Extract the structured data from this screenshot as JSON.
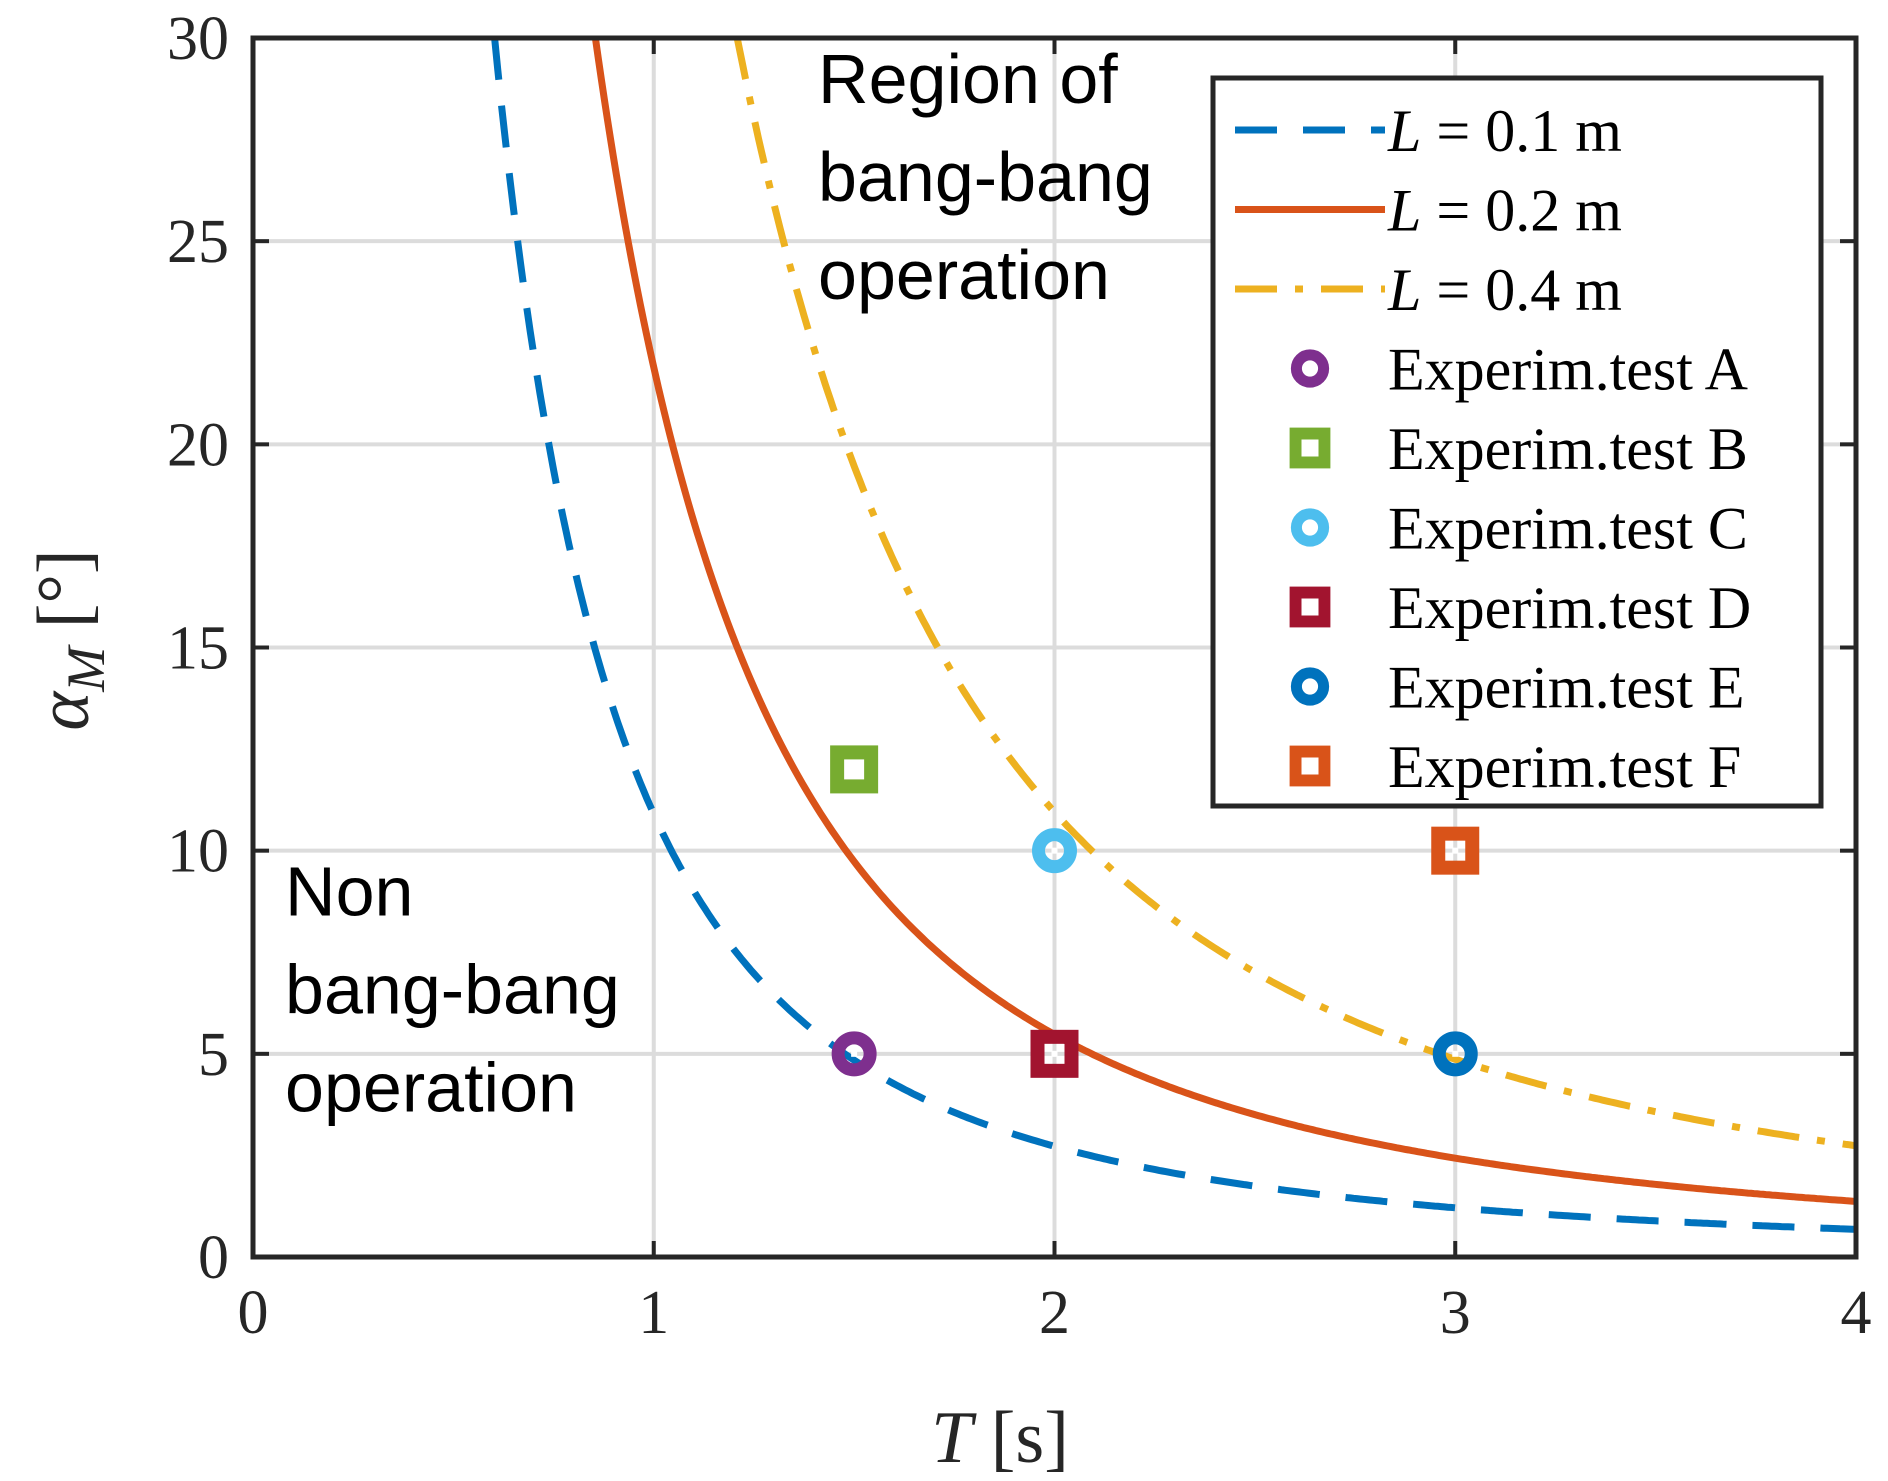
{
  "chart_data": {
    "type": "line",
    "title": "",
    "xlabel": {
      "var": "T",
      "unit": " [s]"
    },
    "ylabel": {
      "var": "α",
      "sub": "M",
      "unit": " [°]"
    },
    "xlim": [
      0,
      4
    ],
    "ylim": [
      0,
      30
    ],
    "xticks": [
      0,
      1,
      2,
      3,
      4
    ],
    "yticks": [
      0,
      5,
      10,
      15,
      20,
      25,
      30
    ],
    "grid": true,
    "legend_position": "top-right",
    "series": [
      {
        "name": "L = 0.1 m",
        "legend_var": "L",
        "legend_rest": " = 0.1 m",
        "style": "dashed",
        "color": "#0072BD",
        "K": 10.9
      },
      {
        "name": "L = 0.2 m",
        "legend_var": "L",
        "legend_rest": " = 0.2 m",
        "style": "solid",
        "color": "#D95319",
        "K": 21.9
      },
      {
        "name": "L = 0.4 m",
        "legend_var": "L",
        "legend_rest": " = 0.4 m",
        "style": "dashdot",
        "color": "#EDB120",
        "K": 43.8
      }
    ],
    "curve_model": "alpha = K / T^2",
    "points": [
      {
        "name": "Experim.test A",
        "marker": "circle",
        "color": "#7E2F8E",
        "x": 1.5,
        "y": 5
      },
      {
        "name": "Experim.test B",
        "marker": "square",
        "color": "#77AC30",
        "x": 1.5,
        "y": 12
      },
      {
        "name": "Experim.test C",
        "marker": "circle",
        "color": "#4DBEEE",
        "x": 2,
        "y": 10
      },
      {
        "name": "Experim.test D",
        "marker": "square",
        "color": "#A2142F",
        "x": 2,
        "y": 5
      },
      {
        "name": "Experim.test E",
        "marker": "circle",
        "color": "#0072BD",
        "x": 3,
        "y": 5
      },
      {
        "name": "Experim.test F",
        "marker": "square",
        "color": "#D95319",
        "x": 3,
        "y": 10
      }
    ],
    "annotations": [
      {
        "lines": [
          "Region of",
          "bang-bang",
          "operation"
        ]
      },
      {
        "lines": [
          "Non",
          "bang-bang",
          "operation"
        ]
      }
    ]
  }
}
